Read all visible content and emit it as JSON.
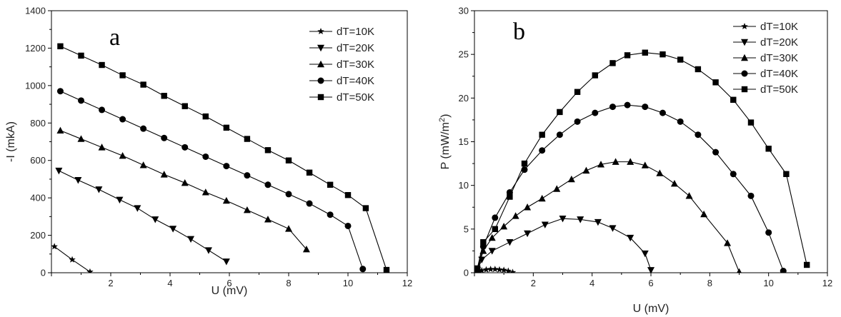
{
  "chart_data": [
    {
      "type": "line",
      "panel_label": "a",
      "xlabel": "U (mV)",
      "ylabel": "-I (mkA)",
      "xlim": [
        0,
        12
      ],
      "ylim": [
        0,
        1400
      ],
      "xticks": [
        2,
        4,
        6,
        8,
        10,
        12
      ],
      "yticks": [
        0,
        200,
        400,
        600,
        800,
        1000,
        1200,
        1400
      ],
      "grid": false,
      "legend_position": "top-right",
      "series": [
        {
          "name": "dT=10K",
          "marker": "star",
          "x": [
            0.1,
            0.7,
            1.3
          ],
          "y": [
            140,
            70,
            5
          ]
        },
        {
          "name": "dT=20K",
          "marker": "triangle-down",
          "x": [
            0.25,
            0.9,
            1.6,
            2.3,
            2.9,
            3.5,
            4.1,
            4.7,
            5.3,
            5.9
          ],
          "y": [
            545,
            495,
            445,
            390,
            345,
            285,
            235,
            180,
            120,
            60
          ]
        },
        {
          "name": "dT=30K",
          "marker": "triangle-up",
          "x": [
            0.3,
            1.0,
            1.7,
            2.4,
            3.1,
            3.8,
            4.5,
            5.2,
            5.9,
            6.6,
            7.3,
            8.0,
            8.6
          ],
          "y": [
            760,
            715,
            670,
            625,
            575,
            525,
            480,
            430,
            385,
            335,
            285,
            235,
            125
          ]
        },
        {
          "name": "dT=40K",
          "marker": "circle",
          "x": [
            0.3,
            1.0,
            1.7,
            2.4,
            3.1,
            3.8,
            4.5,
            5.2,
            5.9,
            6.6,
            7.3,
            8.0,
            8.7,
            9.4,
            10.0,
            10.5
          ],
          "y": [
            970,
            920,
            870,
            820,
            770,
            720,
            670,
            620,
            570,
            520,
            470,
            420,
            370,
            310,
            250,
            20
          ]
        },
        {
          "name": "dT=50K",
          "marker": "square",
          "x": [
            0.3,
            1.0,
            1.7,
            2.4,
            3.1,
            3.8,
            4.5,
            5.2,
            5.9,
            6.6,
            7.3,
            8.0,
            8.7,
            9.4,
            10.0,
            10.6,
            11.3
          ],
          "y": [
            1210,
            1160,
            1110,
            1055,
            1005,
            945,
            890,
            835,
            775,
            715,
            655,
            600,
            535,
            470,
            415,
            345,
            15
          ]
        }
      ]
    },
    {
      "type": "line",
      "panel_label": "b",
      "xlabel": "U (mV)",
      "ylabel_main": "P (mW/m",
      "ylabel_sup": "2",
      "ylabel_end": ")",
      "xlim": [
        0,
        12
      ],
      "ylim": [
        0,
        30
      ],
      "xticks": [
        2,
        4,
        6,
        8,
        10,
        12
      ],
      "yticks": [
        0,
        5,
        10,
        15,
        20,
        25,
        30
      ],
      "grid": false,
      "legend_position": "top-right",
      "series": [
        {
          "name": "dT=10K",
          "marker": "star",
          "x": [
            0.1,
            0.25,
            0.4,
            0.55,
            0.7,
            0.85,
            1.0,
            1.15,
            1.3
          ],
          "y": [
            0.1,
            0.25,
            0.35,
            0.4,
            0.4,
            0.35,
            0.3,
            0.2,
            0.05
          ]
        },
        {
          "name": "dT=20K",
          "marker": "triangle-down",
          "x": [
            0.1,
            0.25,
            0.6,
            1.2,
            1.8,
            2.4,
            3.0,
            3.6,
            4.2,
            4.7,
            5.3,
            5.8,
            6.0
          ],
          "y": [
            0.3,
            1.5,
            2.5,
            3.5,
            4.5,
            5.5,
            6.2,
            6.1,
            5.8,
            5.1,
            4.0,
            2.2,
            0.3
          ]
        },
        {
          "name": "dT=30K",
          "marker": "triangle-up",
          "x": [
            0.1,
            0.3,
            0.6,
            1.0,
            1.4,
            1.8,
            2.3,
            2.8,
            3.3,
            3.8,
            4.3,
            4.8,
            5.3,
            5.8,
            6.3,
            6.8,
            7.3,
            7.8,
            8.6,
            9.0
          ],
          "y": [
            0.3,
            2.5,
            4.0,
            5.3,
            6.5,
            7.5,
            8.5,
            9.6,
            10.7,
            11.7,
            12.4,
            12.7,
            12.7,
            12.3,
            11.4,
            10.2,
            8.8,
            6.7,
            3.4,
            0.1
          ]
        },
        {
          "name": "dT=40K",
          "marker": "circle",
          "x": [
            0.1,
            0.3,
            0.7,
            1.2,
            1.7,
            2.3,
            2.9,
            3.5,
            4.1,
            4.7,
            5.2,
            5.8,
            6.4,
            7.0,
            7.6,
            8.2,
            8.8,
            9.4,
            10.0,
            10.5
          ],
          "y": [
            0.4,
            3.0,
            6.3,
            9.2,
            11.8,
            14.0,
            15.8,
            17.3,
            18.3,
            19.0,
            19.2,
            19.0,
            18.3,
            17.3,
            15.8,
            13.8,
            11.3,
            8.8,
            4.6,
            0.2
          ]
        },
        {
          "name": "dT=50K",
          "marker": "square",
          "x": [
            0.1,
            0.3,
            0.7,
            1.2,
            1.7,
            2.3,
            2.9,
            3.5,
            4.1,
            4.7,
            5.2,
            5.8,
            6.4,
            7.0,
            7.6,
            8.2,
            8.8,
            9.4,
            10.0,
            10.6,
            11.3
          ],
          "y": [
            0.5,
            3.5,
            5.0,
            8.7,
            12.5,
            15.8,
            18.4,
            20.7,
            22.6,
            24.0,
            24.9,
            25.2,
            25.0,
            24.4,
            23.3,
            21.8,
            19.8,
            17.2,
            14.2,
            11.3,
            0.9
          ]
        }
      ]
    }
  ]
}
